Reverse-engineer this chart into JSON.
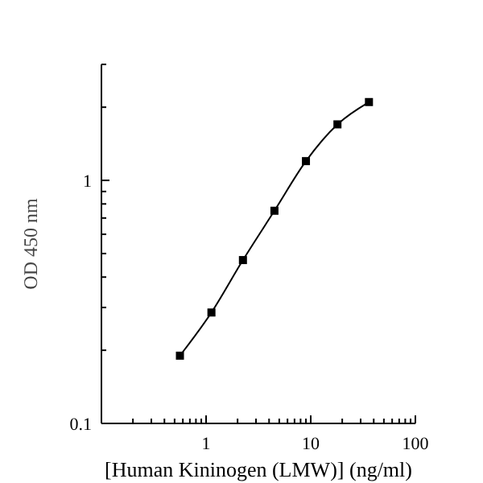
{
  "chart_data": {
    "type": "line",
    "xlabel": "[Human Kininogen (LMW)] (ng/ml)",
    "ylabel": "OD 450 nm",
    "log": "xy",
    "x": [
      0.5625,
      1.125,
      2.25,
      4.5,
      9,
      18,
      36
    ],
    "series": [
      {
        "color": "#000000",
        "values": [
          0.19,
          0.286,
          0.47,
          0.75,
          1.2,
          1.7,
          2.1
        ]
      }
    ],
    "xlim": [
      0.1,
      100
    ],
    "xticks": [
      {
        "value": 0.1,
        "label": null
      },
      1,
      10,
      100
    ],
    "ylim": [
      0.1,
      3
    ],
    "yticks": [
      0.1,
      1
    ],
    "marker": "square",
    "line_style": "solid"
  }
}
